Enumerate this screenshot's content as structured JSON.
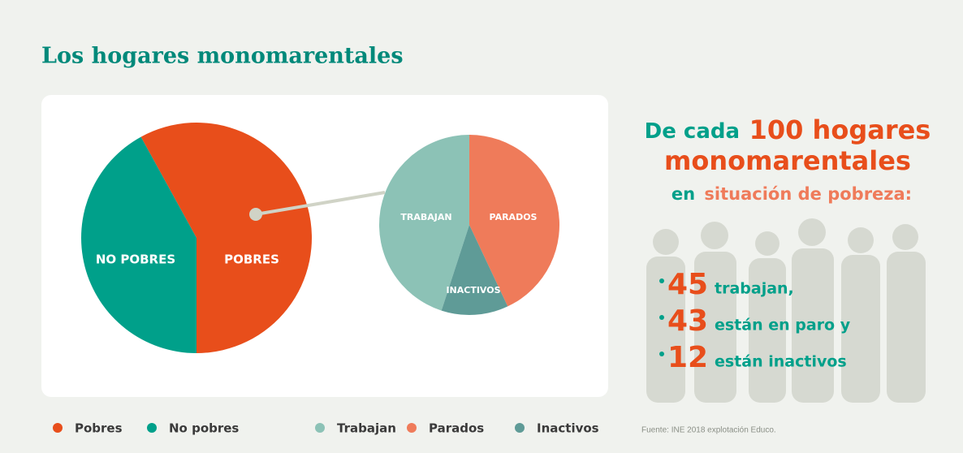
{
  "title": "Los hogares monomarentales",
  "chart_data": [
    {
      "type": "pie",
      "categories": [
        "Pobres",
        "No pobres"
      ],
      "slice_labels": [
        "POBRES",
        "NO POBRES"
      ],
      "values": [
        58,
        42
      ],
      "colors": [
        "#e84e1b",
        "#00a08a"
      ]
    },
    {
      "type": "pie",
      "categories": [
        "Trabajan",
        "Parados",
        "Inactivos"
      ],
      "slice_labels": [
        "TRABAJAN",
        "PARADOS",
        "INACTIVOS"
      ],
      "values": [
        45,
        43,
        12
      ],
      "colors": [
        "#8cc2b6",
        "#ef7b5a",
        "#5f9b97"
      ]
    }
  ],
  "headline": {
    "lead": "De cada",
    "highlight": "100 hogares",
    "line2": "monomarentales",
    "connector": "en",
    "focus": "situación de pobreza:"
  },
  "facts": [
    "trabajan,",
    "están en paro y",
    "están inactivos"
  ],
  "source": "Fuente: INE 2018 explotación Educo."
}
